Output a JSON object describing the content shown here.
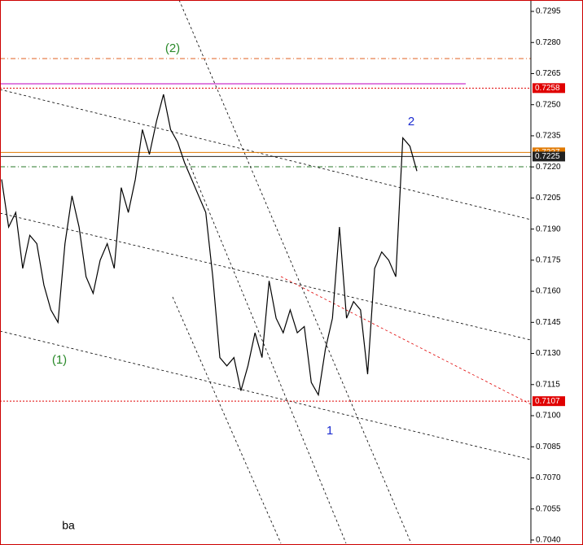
{
  "chart_data": {
    "type": "line",
    "series": [
      {
        "color": "#000000",
        "values": [
          0.7214,
          0.7191,
          0.7198,
          0.7171,
          0.7187,
          0.7183,
          0.7163,
          0.7151,
          0.7145,
          0.7183,
          0.7206,
          0.7191,
          0.7167,
          0.7159,
          0.7175,
          0.7183,
          0.7171,
          0.721,
          0.7198,
          0.7214,
          0.7238,
          0.7226,
          0.7242,
          0.7255,
          0.7238,
          0.7232,
          0.7222,
          0.7214,
          0.7206,
          0.7198,
          0.7167,
          0.7128,
          0.7124,
          0.7128,
          0.7112,
          0.7124,
          0.714,
          0.7128,
          0.7165,
          0.7147,
          0.714,
          0.7151,
          0.714,
          0.7143,
          0.7116,
          0.711,
          0.7132,
          0.7147,
          0.7191,
          0.7147,
          0.7155,
          0.7151,
          0.712,
          0.7171,
          0.7179,
          0.7175,
          0.7167,
          0.7234,
          0.723,
          0.7218
        ]
      }
    ],
    "ylim": [
      0.70384,
      0.73005
    ],
    "yticks": [
      0.7295,
      {
        "value": 0.728,
        "label": "0.7280"
      },
      0.7265,
      {
        "value": 0.725,
        "label": "0.7250"
      },
      0.7235,
      {
        "value": 0.722,
        "label": "0.7220"
      },
      0.7205,
      {
        "value": 0.719,
        "label": "0.7190"
      },
      0.7175,
      {
        "value": 0.716,
        "label": "0.7160"
      },
      0.7145,
      {
        "value": 0.713,
        "label": "0.7130"
      },
      0.7115,
      {
        "value": 0.71,
        "label": "0.7100"
      },
      0.7085,
      {
        "value": 0.707,
        "label": "0.7070"
      },
      0.7055,
      {
        "value": 0.704,
        "label": "0.7040"
      }
    ],
    "price_levels": [
      {
        "value": 0.7258,
        "color": "#e00000"
      },
      {
        "value": 0.7227,
        "color": "#e07800"
      },
      {
        "value": 0.7225,
        "color": "#222222"
      },
      {
        "value": 0.7107,
        "color": "#e00000"
      }
    ],
    "annotations": [
      "(2)",
      "(1)",
      "1",
      "2",
      "ba"
    ]
  }
}
